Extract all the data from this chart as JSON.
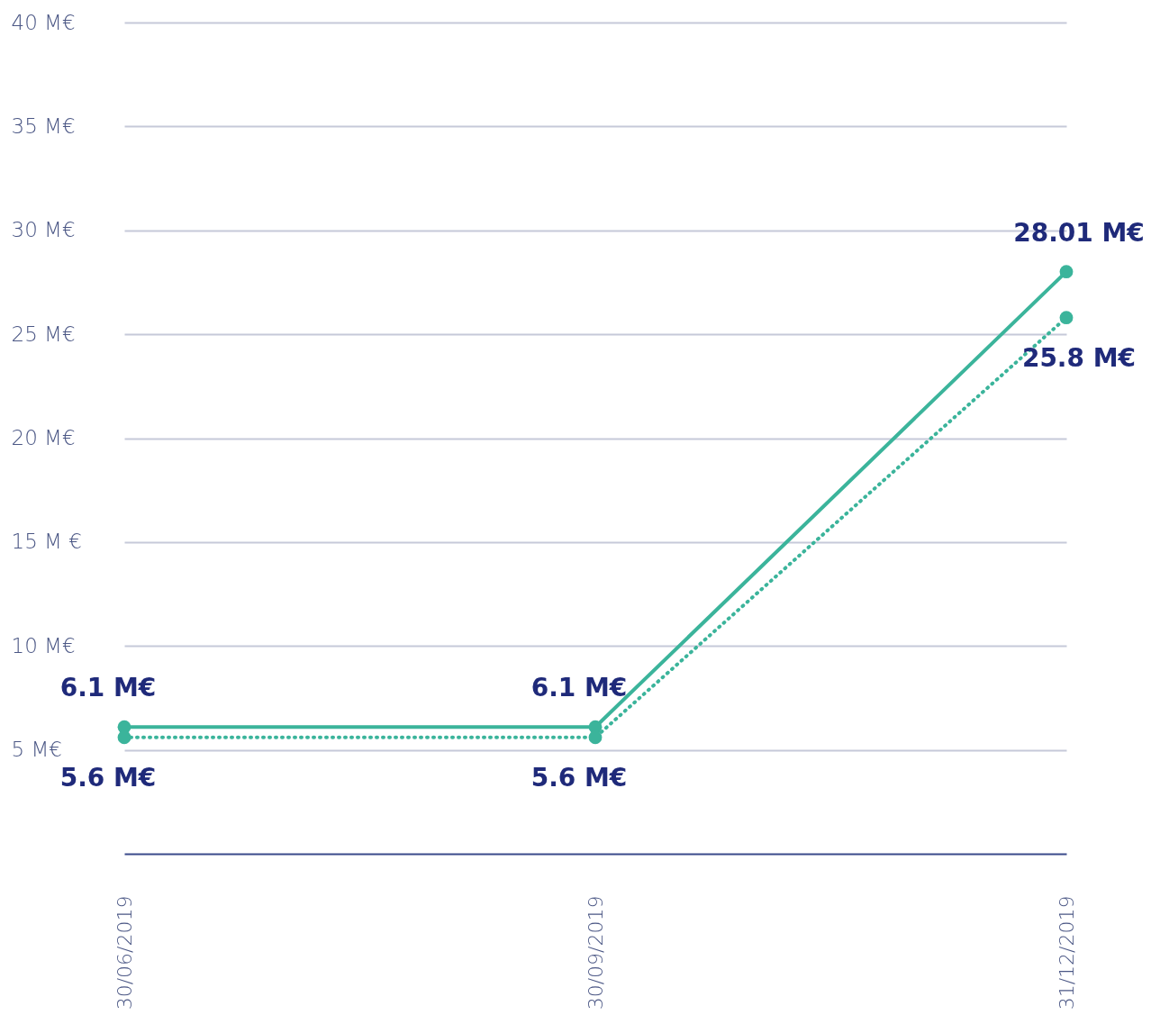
{
  "chart_data": {
    "type": "line",
    "categories": [
      "30/06/2019",
      "30/09/2019",
      "31/12/2019"
    ],
    "series": [
      {
        "color": "#3bb49b",
        "line_style": "solid",
        "values": [
          6.1,
          6.1,
          28.01
        ],
        "value_labels": [
          "6.1 M€",
          "6.1 M€",
          "28.01 M€"
        ]
      },
      {
        "color": "#3bb49b",
        "line_style": "dotted",
        "values": [
          5.6,
          5.6,
          25.8
        ],
        "value_labels": [
          "5.6 M€",
          "5.6 M€",
          "25.8 M€"
        ]
      }
    ],
    "ylim": [
      0,
      40
    ],
    "yticks": [
      {
        "value": 5,
        "label": "5 M€"
      },
      {
        "value": 10,
        "label": "10 M€"
      },
      {
        "value": 15,
        "label": "15 M €"
      },
      {
        "value": 20,
        "label": "20 M€"
      },
      {
        "value": 25,
        "label": "25 M€"
      },
      {
        "value": 30,
        "label": "30 M€"
      },
      {
        "value": 35,
        "label": "35 M€"
      },
      {
        "value": 40,
        "label": "40 M€"
      }
    ],
    "grid": "y",
    "marker": "circle"
  }
}
